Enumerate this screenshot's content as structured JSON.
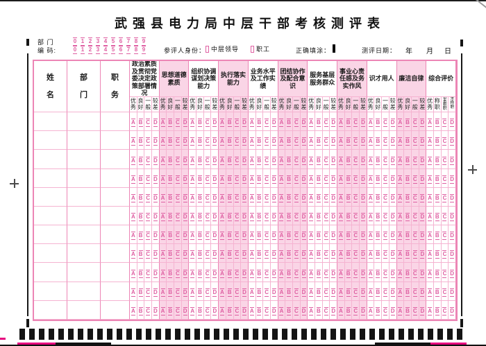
{
  "title": "武强县电力局中层干部考核测评表",
  "meta": {
    "dept_label": "部 门",
    "code_label": "编 码:",
    "digits": [
      "0",
      "1",
      "2",
      "3",
      "4",
      "5",
      "6",
      "7",
      "8",
      "9"
    ],
    "identity_label": "参评人身份：",
    "identity_options": [
      {
        "label": "中层领导"
      },
      {
        "label": "职工"
      }
    ],
    "fill_label": "正确填涂：",
    "date_label": "测评日期：",
    "date_units": [
      "年",
      "月",
      "日"
    ]
  },
  "table": {
    "fixed_columns": [
      "姓名",
      "部门",
      "职务"
    ],
    "groups": [
      {
        "name": "政治素质及贯彻党委决定政策部署情况",
        "tinted": false
      },
      {
        "name": "思想道德素质",
        "tinted": true
      },
      {
        "name": "组织协调谋划决策能力",
        "tinted": false
      },
      {
        "name": "执行落实能力",
        "tinted": true
      },
      {
        "name": "业务水平及工作实绩",
        "tinted": false
      },
      {
        "name": "团结协作及配合意识",
        "tinted": true
      },
      {
        "name": "服务基层服务群众",
        "tinted": false
      },
      {
        "name": "事业心责任感及务实作风",
        "tinted": true
      },
      {
        "name": "识才用人",
        "tinted": false
      },
      {
        "name": "廉洁自律",
        "tinted": true
      },
      {
        "name": "综合评价",
        "tinted": false
      }
    ],
    "rating_scale": [
      "优秀",
      "良好",
      "一般",
      "较差"
    ],
    "overall_scale": [
      "优秀",
      "称职",
      "基本称职",
      "不称职"
    ],
    "bubble_letters": [
      "A",
      "B",
      "C",
      "D"
    ],
    "data_row_count": 11
  },
  "colors": {
    "pink_accent": "#df5fa2",
    "pink_border": "#ec85b5",
    "tint": "#fad5e6",
    "mark_black": "#161616",
    "magenta": "#e6007e"
  }
}
